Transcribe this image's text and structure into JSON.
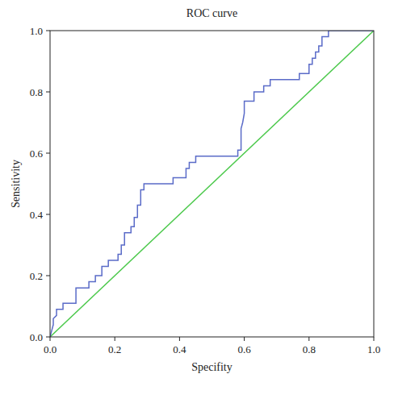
{
  "chart_data": {
    "type": "line",
    "title": "ROC curve",
    "x_label": "Specifity",
    "y_label": "Sensitivity",
    "xlim": [
      0,
      1
    ],
    "ylim": [
      0,
      1
    ],
    "xticks": [
      {
        "value": 0,
        "label": "0.0"
      },
      0.2,
      0.4,
      0.6,
      0.8,
      {
        "value": 1,
        "label": "1.0"
      }
    ],
    "yticks": [
      {
        "value": 0,
        "label": "0.0"
      },
      0.2,
      0.4,
      0.6,
      0.8,
      {
        "value": 1,
        "label": "1.0"
      }
    ],
    "grid": false,
    "series": [
      {
        "color": "#5a6bc8",
        "x": [
          0,
          0.005,
          0.01,
          0.01,
          0.02,
          0.02,
          0.04,
          0.04,
          0.08,
          0.08,
          0.12,
          0.12,
          0.14,
          0.14,
          0.16,
          0.16,
          0.18,
          0.18,
          0.21,
          0.21,
          0.22,
          0.22,
          0.23,
          0.23,
          0.25,
          0.25,
          0.26,
          0.26,
          0.27,
          0.27,
          0.28,
          0.28,
          0.29,
          0.29,
          0.38,
          0.38,
          0.42,
          0.42,
          0.43,
          0.43,
          0.45,
          0.45,
          0.58,
          0.58,
          0.59,
          0.59,
          0.595,
          0.6,
          0.6,
          0.63,
          0.63,
          0.66,
          0.66,
          0.68,
          0.68,
          0.77,
          0.77,
          0.8,
          0.8,
          0.81,
          0.81,
          0.82,
          0.82,
          0.83,
          0.83,
          0.84,
          0.84,
          0.86,
          0.86,
          0.89,
          1
        ],
        "values": [
          0,
          0.02,
          0.04,
          0.06,
          0.07,
          0.09,
          0.09,
          0.11,
          0.11,
          0.16,
          0.16,
          0.18,
          0.18,
          0.2,
          0.2,
          0.23,
          0.23,
          0.25,
          0.25,
          0.27,
          0.27,
          0.3,
          0.3,
          0.34,
          0.34,
          0.36,
          0.36,
          0.39,
          0.39,
          0.43,
          0.43,
          0.48,
          0.48,
          0.5,
          0.5,
          0.52,
          0.52,
          0.55,
          0.55,
          0.57,
          0.57,
          0.59,
          0.59,
          0.61,
          0.61,
          0.68,
          0.7,
          0.73,
          0.77,
          0.77,
          0.8,
          0.8,
          0.82,
          0.82,
          0.84,
          0.84,
          0.86,
          0.86,
          0.89,
          0.89,
          0.91,
          0.91,
          0.93,
          0.93,
          0.95,
          0.95,
          0.98,
          0.98,
          1,
          1,
          1
        ]
      },
      {
        "color": "#4cc94c",
        "x": [
          0,
          1
        ],
        "values": [
          0,
          1
        ]
      }
    ]
  }
}
